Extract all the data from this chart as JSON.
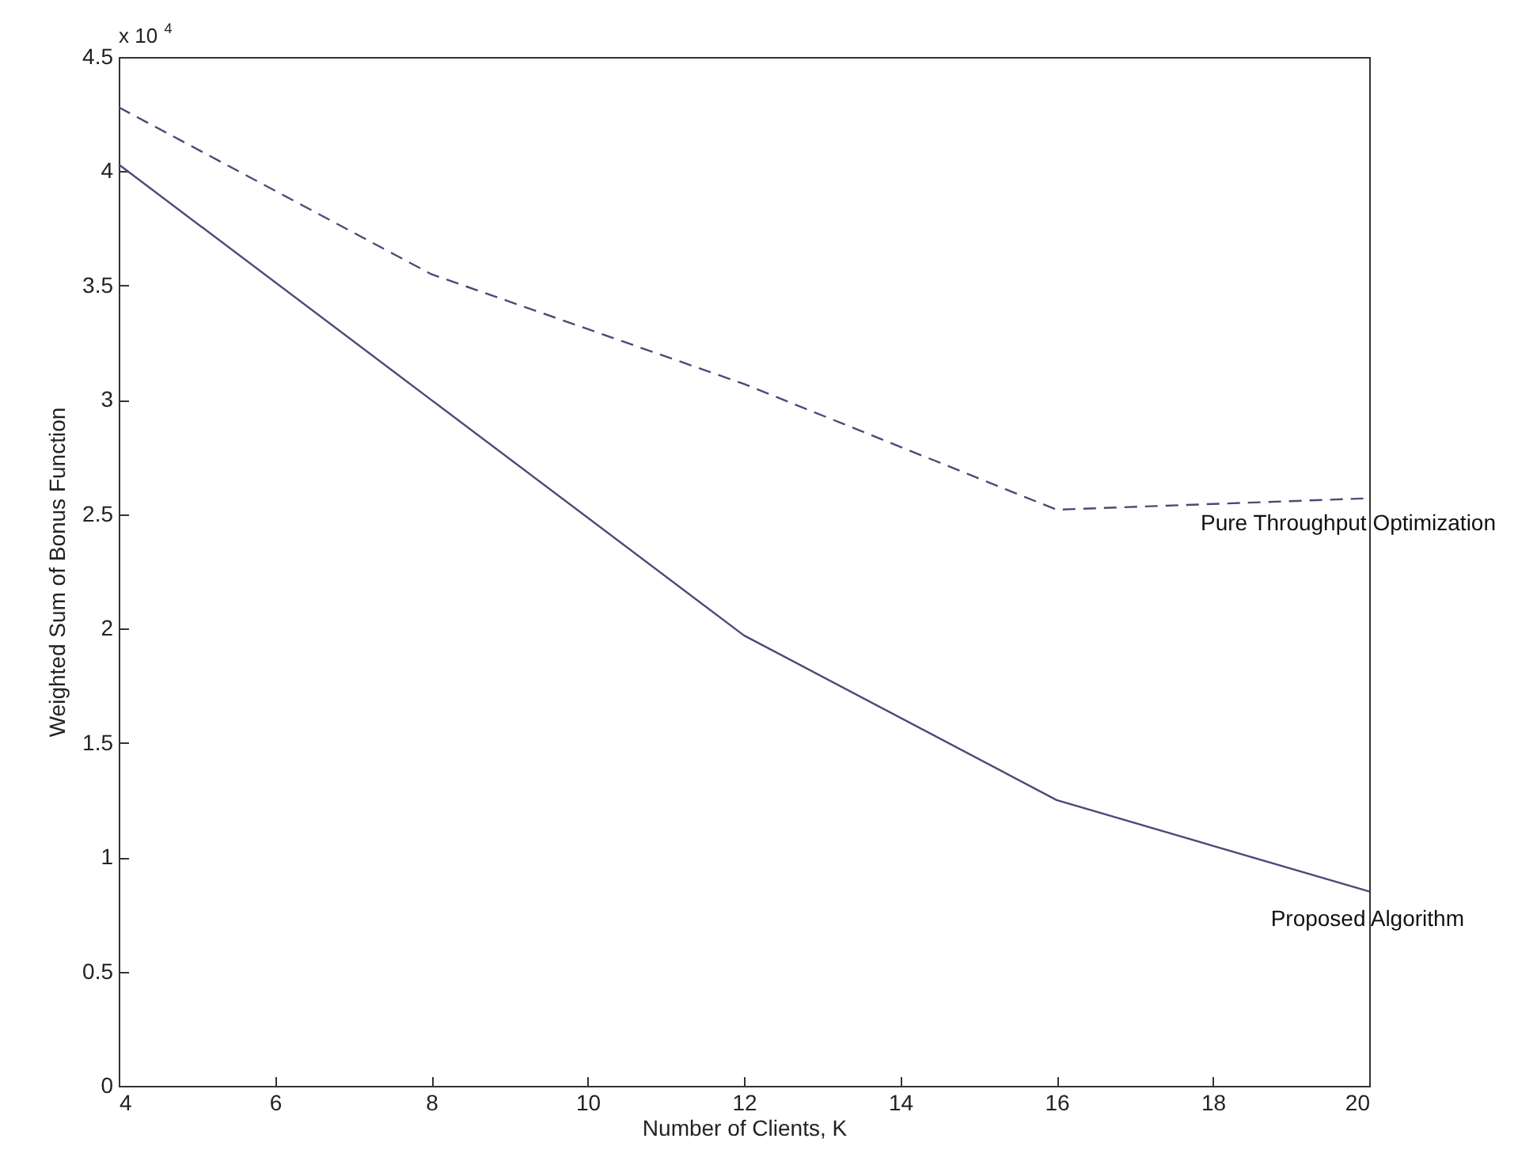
{
  "chart_data": {
    "type": "line",
    "xlabel": "Number of Clients, K",
    "ylabel": "Weighted Sum of Bonus Function",
    "annotations": [
      "x 10$^{4}$"
    ],
    "x": [
      4,
      8,
      12,
      16,
      20
    ],
    "series": [
      {
        "name": "Pure Throughput Optimization",
        "color": "#4a4a78",
        "line_style": "dashed",
        "values": [
          4.28,
          3.55,
          3.07,
          2.52,
          2.57
        ]
      },
      {
        "name": "Proposed Algorithm",
        "color": "#4a4a78",
        "line_style": "solid",
        "values": [
          4.03,
          3.0,
          1.97,
          1.25,
          0.85
        ]
      }
    ],
    "xlim": [
      4,
      20
    ],
    "xticks": [
      4,
      6,
      8,
      10,
      12,
      14,
      16,
      18,
      20
    ],
    "ylim": [
      0,
      4.5
    ],
    "yticks": [
      0,
      0.5,
      1,
      1.5,
      2,
      2.5,
      3,
      3.5,
      4,
      4.5
    ],
    "grid": false,
    "marker": "none"
  }
}
